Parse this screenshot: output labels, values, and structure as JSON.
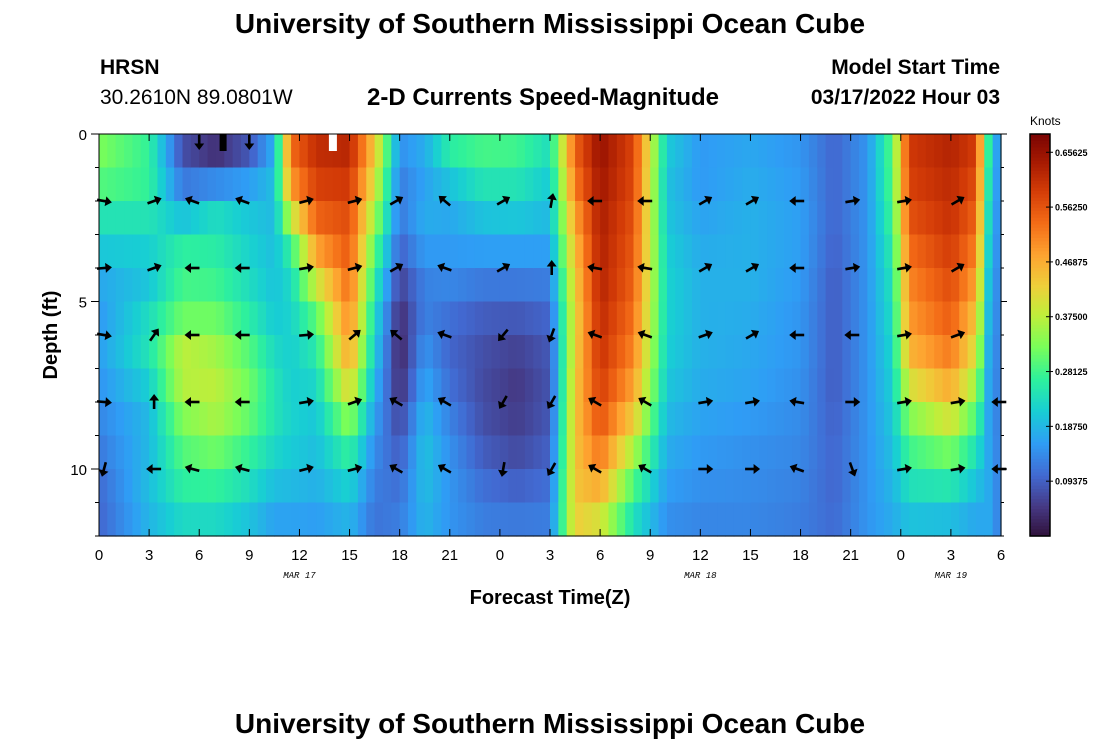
{
  "header": {
    "title": "University of Southern Mississippi Ocean Cube",
    "station_name": "HRSN",
    "station_coords": "30.2610N  89.0801W",
    "chart_title": "2-D Currents Speed-Magnitude",
    "model_start_label": "Model Start Time",
    "model_start_time": "03/17/2022 Hour 03"
  },
  "footer": {
    "title": "University of Southern Mississippi Ocean Cube"
  },
  "chart_data": {
    "type": "heatmap",
    "title": "2-D Currents Speed-Magnitude",
    "xlabel": "Forecast Time(Z)",
    "ylabel": "Depth (ft)",
    "x_range_hours": [
      0,
      54
    ],
    "y_range_ft": [
      0,
      12
    ],
    "y_ticks": [
      0,
      5,
      10
    ],
    "x_ticks": [
      {
        "h": 0,
        "label": "0"
      },
      {
        "h": 3,
        "label": "3"
      },
      {
        "h": 6,
        "label": "6"
      },
      {
        "h": 9,
        "label": "9"
      },
      {
        "h": 12,
        "label": "12"
      },
      {
        "h": 15,
        "label": "15"
      },
      {
        "h": 18,
        "label": "18"
      },
      {
        "h": 21,
        "label": "21"
      },
      {
        "h": 24,
        "label": "0"
      },
      {
        "h": 27,
        "label": "3"
      },
      {
        "h": 30,
        "label": "6"
      },
      {
        "h": 33,
        "label": "9"
      },
      {
        "h": 36,
        "label": "12"
      },
      {
        "h": 39,
        "label": "15"
      },
      {
        "h": 42,
        "label": "18"
      },
      {
        "h": 45,
        "label": "21"
      },
      {
        "h": 48,
        "label": "0"
      },
      {
        "h": 51,
        "label": "3"
      },
      {
        "h": 54,
        "label": "6"
      }
    ],
    "date_labels": [
      {
        "h": 12,
        "label": "MAR 17"
      },
      {
        "h": 36,
        "label": "MAR 18"
      },
      {
        "h": 51,
        "label": "MAR 19"
      }
    ],
    "colorbar": {
      "unit": "Knots",
      "min": 0.0,
      "max": 0.6875,
      "ticks": [
        {
          "v": 0.65625,
          "label": "0.65625"
        },
        {
          "v": 0.5625,
          "label": "0.56250"
        },
        {
          "v": 0.46875,
          "label": "0.46875"
        },
        {
          "v": 0.375,
          "label": "0.37500"
        },
        {
          "v": 0.28125,
          "label": "0.28125"
        },
        {
          "v": 0.1875,
          "label": "0.18750"
        },
        {
          "v": 0.09375,
          "label": "0.09375"
        }
      ]
    },
    "speed_knots_profiles": [
      {
        "h": 0,
        "v": [
          0.33,
          0.32,
          0.27,
          0.22,
          0.19,
          0.15,
          0.16,
          0.16,
          0.14,
          0.13,
          0.11,
          0.1,
          0.1
        ]
      },
      {
        "h": 3,
        "v": [
          0.26,
          0.28,
          0.26,
          0.23,
          0.2,
          0.21,
          0.26,
          0.23,
          0.2,
          0.18,
          0.2,
          0.19,
          0.18
        ]
      },
      {
        "h": 5,
        "v": [
          0.08,
          0.07,
          0.17,
          0.23,
          0.3,
          0.27,
          0.36,
          0.39,
          0.35,
          0.31,
          0.28,
          0.25,
          0.21
        ]
      },
      {
        "h": 7,
        "v": [
          0.02,
          0.06,
          0.22,
          0.25,
          0.27,
          0.29,
          0.34,
          0.37,
          0.38,
          0.34,
          0.29,
          0.25,
          0.21
        ]
      },
      {
        "h": 9,
        "v": [
          0.05,
          0.12,
          0.2,
          0.21,
          0.23,
          0.24,
          0.28,
          0.31,
          0.32,
          0.29,
          0.25,
          0.22,
          0.18
        ]
      },
      {
        "h": 10.5,
        "v": [
          0.16,
          0.2,
          0.19,
          0.19,
          0.2,
          0.2,
          0.22,
          0.24,
          0.25,
          0.24,
          0.21,
          0.18,
          0.15
        ]
      },
      {
        "h": 11.5,
        "v": [
          0.55,
          0.52,
          0.46,
          0.3,
          0.24,
          0.22,
          0.22,
          0.21,
          0.22,
          0.22,
          0.2,
          0.18,
          0.15
        ]
      },
      {
        "h": 13,
        "v": [
          0.62,
          0.6,
          0.57,
          0.52,
          0.44,
          0.33,
          0.27,
          0.24,
          0.21,
          0.2,
          0.19,
          0.17,
          0.15
        ]
      },
      {
        "h": 15,
        "v": [
          0.63,
          0.61,
          0.58,
          0.56,
          0.55,
          0.52,
          0.5,
          0.46,
          0.38,
          0.3,
          0.24,
          0.2,
          0.17
        ]
      },
      {
        "h": 16.5,
        "v": [
          0.45,
          0.42,
          0.38,
          0.32,
          0.28,
          0.24,
          0.22,
          0.2,
          0.17,
          0.15,
          0.13,
          0.12,
          0.11
        ]
      },
      {
        "h": 18,
        "v": [
          0.17,
          0.12,
          0.13,
          0.11,
          0.08,
          0.04,
          0.03,
          0.02,
          0.05,
          0.08,
          0.1,
          0.12,
          0.13
        ]
      },
      {
        "h": 19.5,
        "v": [
          0.2,
          0.15,
          0.18,
          0.17,
          0.14,
          0.12,
          0.14,
          0.16,
          0.18,
          0.2,
          0.2,
          0.19,
          0.18
        ]
      },
      {
        "h": 21,
        "v": [
          0.3,
          0.22,
          0.18,
          0.16,
          0.15,
          0.12,
          0.1,
          0.1,
          0.12,
          0.14,
          0.15,
          0.15,
          0.15
        ]
      },
      {
        "h": 23,
        "v": [
          0.3,
          0.27,
          0.22,
          0.18,
          0.14,
          0.1,
          0.08,
          0.07,
          0.07,
          0.08,
          0.1,
          0.12,
          0.13
        ]
      },
      {
        "h": 25,
        "v": [
          0.3,
          0.26,
          0.23,
          0.18,
          0.14,
          0.1,
          0.07,
          0.05,
          0.05,
          0.06,
          0.08,
          0.11,
          0.13
        ]
      },
      {
        "h": 27,
        "v": [
          0.25,
          0.22,
          0.2,
          0.18,
          0.14,
          0.11,
          0.09,
          0.08,
          0.08,
          0.09,
          0.1,
          0.12,
          0.13
        ]
      },
      {
        "h": 28.5,
        "v": [
          0.55,
          0.54,
          0.5,
          0.46,
          0.44,
          0.42,
          0.42,
          0.43,
          0.44,
          0.44,
          0.44,
          0.44,
          0.42
        ]
      },
      {
        "h": 30,
        "v": [
          0.66,
          0.65,
          0.64,
          0.63,
          0.63,
          0.62,
          0.61,
          0.6,
          0.58,
          0.55,
          0.5,
          0.44,
          0.36
        ]
      },
      {
        "h": 32,
        "v": [
          0.58,
          0.58,
          0.57,
          0.56,
          0.55,
          0.54,
          0.52,
          0.5,
          0.46,
          0.4,
          0.32,
          0.26,
          0.22
        ]
      },
      {
        "h": 34,
        "v": [
          0.22,
          0.2,
          0.2,
          0.21,
          0.22,
          0.22,
          0.22,
          0.21,
          0.2,
          0.18,
          0.17,
          0.15,
          0.14
        ]
      },
      {
        "h": 36,
        "v": [
          0.16,
          0.15,
          0.16,
          0.17,
          0.18,
          0.18,
          0.18,
          0.18,
          0.17,
          0.16,
          0.15,
          0.14,
          0.13
        ]
      },
      {
        "h": 39,
        "v": [
          0.17,
          0.17,
          0.18,
          0.18,
          0.18,
          0.18,
          0.17,
          0.17,
          0.16,
          0.15,
          0.14,
          0.14,
          0.13
        ]
      },
      {
        "h": 42,
        "v": [
          0.15,
          0.15,
          0.16,
          0.16,
          0.16,
          0.15,
          0.15,
          0.15,
          0.14,
          0.14,
          0.13,
          0.13,
          0.12
        ]
      },
      {
        "h": 44,
        "v": [
          0.1,
          0.1,
          0.1,
          0.1,
          0.09,
          0.09,
          0.09,
          0.09,
          0.09,
          0.1,
          0.1,
          0.1,
          0.11
        ]
      },
      {
        "h": 46,
        "v": [
          0.15,
          0.15,
          0.15,
          0.15,
          0.15,
          0.15,
          0.15,
          0.15,
          0.15,
          0.15,
          0.15,
          0.15,
          0.15
        ]
      },
      {
        "h": 47.5,
        "v": [
          0.3,
          0.3,
          0.29,
          0.27,
          0.25,
          0.24,
          0.23,
          0.22,
          0.21,
          0.2,
          0.19,
          0.18,
          0.17
        ]
      },
      {
        "h": 48.5,
        "v": [
          0.6,
          0.59,
          0.58,
          0.55,
          0.52,
          0.5,
          0.48,
          0.44,
          0.36,
          0.3,
          0.26,
          0.22,
          0.18
        ]
      },
      {
        "h": 51,
        "v": [
          0.63,
          0.62,
          0.61,
          0.6,
          0.58,
          0.56,
          0.54,
          0.5,
          0.44,
          0.36,
          0.28,
          0.22,
          0.17
        ]
      },
      {
        "h": 52.5,
        "v": [
          0.6,
          0.58,
          0.56,
          0.53,
          0.5,
          0.46,
          0.42,
          0.38,
          0.32,
          0.26,
          0.22,
          0.18,
          0.16
        ]
      },
      {
        "h": 53.3,
        "v": [
          0.25,
          0.24,
          0.22,
          0.21,
          0.19,
          0.18,
          0.17,
          0.16,
          0.16,
          0.16,
          0.17,
          0.17,
          0.17
        ]
      },
      {
        "h": 54,
        "v": [
          0.12,
          0.12,
          0.12,
          0.12,
          0.12,
          0.12,
          0.12,
          0.12,
          0.12,
          0.12,
          0.12,
          0.12,
          0.12
        ]
      }
    ],
    "arrow_depths_ft": [
      2,
      4,
      6,
      8,
      10
    ],
    "arrow_columns": [
      {
        "h": 0.3,
        "dirs": [
          10,
          -5,
          10,
          5,
          105
        ]
      },
      {
        "h": 3.3,
        "dirs": [
          -20,
          -20,
          -55,
          -90,
          180
        ]
      },
      {
        "h": 5.6,
        "dirs": [
          200,
          180,
          180,
          180,
          195
        ]
      },
      {
        "h": 8.6,
        "dirs": [
          200,
          180,
          180,
          180,
          195
        ]
      },
      {
        "h": 12.4,
        "dirs": [
          -15,
          -10,
          -5,
          -10,
          -15
        ]
      },
      {
        "h": 15.3,
        "dirs": [
          -15,
          -15,
          -40,
          -20,
          -15
        ]
      },
      {
        "h": 17.8,
        "dirs": [
          -30,
          -30,
          220,
          210,
          210
        ]
      },
      {
        "h": 20.7,
        "dirs": [
          220,
          200,
          200,
          210,
          210
        ]
      },
      {
        "h": 24.2,
        "dirs": [
          -30,
          -30,
          130,
          120,
          100
        ]
      },
      {
        "h": 27.1,
        "dirs": [
          -80,
          -90,
          110,
          120,
          120
        ]
      },
      {
        "h": 29.7,
        "dirs": [
          180,
          190,
          200,
          210,
          210
        ]
      },
      {
        "h": 32.7,
        "dirs": [
          180,
          190,
          200,
          210,
          210
        ]
      },
      {
        "h": 36.3,
        "dirs": [
          -30,
          -30,
          -20,
          -10,
          0
        ]
      },
      {
        "h": 39.1,
        "dirs": [
          -30,
          -30,
          -30,
          -10,
          0
        ]
      },
      {
        "h": 41.8,
        "dirs": [
          180,
          180,
          180,
          190,
          200
        ]
      },
      {
        "h": 45.1,
        "dirs": [
          -10,
          -10,
          180,
          0,
          70
        ]
      },
      {
        "h": 48.2,
        "dirs": [
          -10,
          -10,
          -10,
          -10,
          -10
        ]
      },
      {
        "h": 51.4,
        "dirs": [
          -30,
          -30,
          -20,
          -10,
          -10
        ]
      },
      {
        "h": 53.9,
        "dirs": [
          null,
          null,
          null,
          180,
          180
        ]
      }
    ],
    "top_marks": [
      {
        "h": 6,
        "kind": "arrow",
        "dir": 90
      },
      {
        "h": 9,
        "kind": "arrow",
        "dir": 90
      },
      {
        "h": 14,
        "kind": "white-block"
      }
    ]
  }
}
